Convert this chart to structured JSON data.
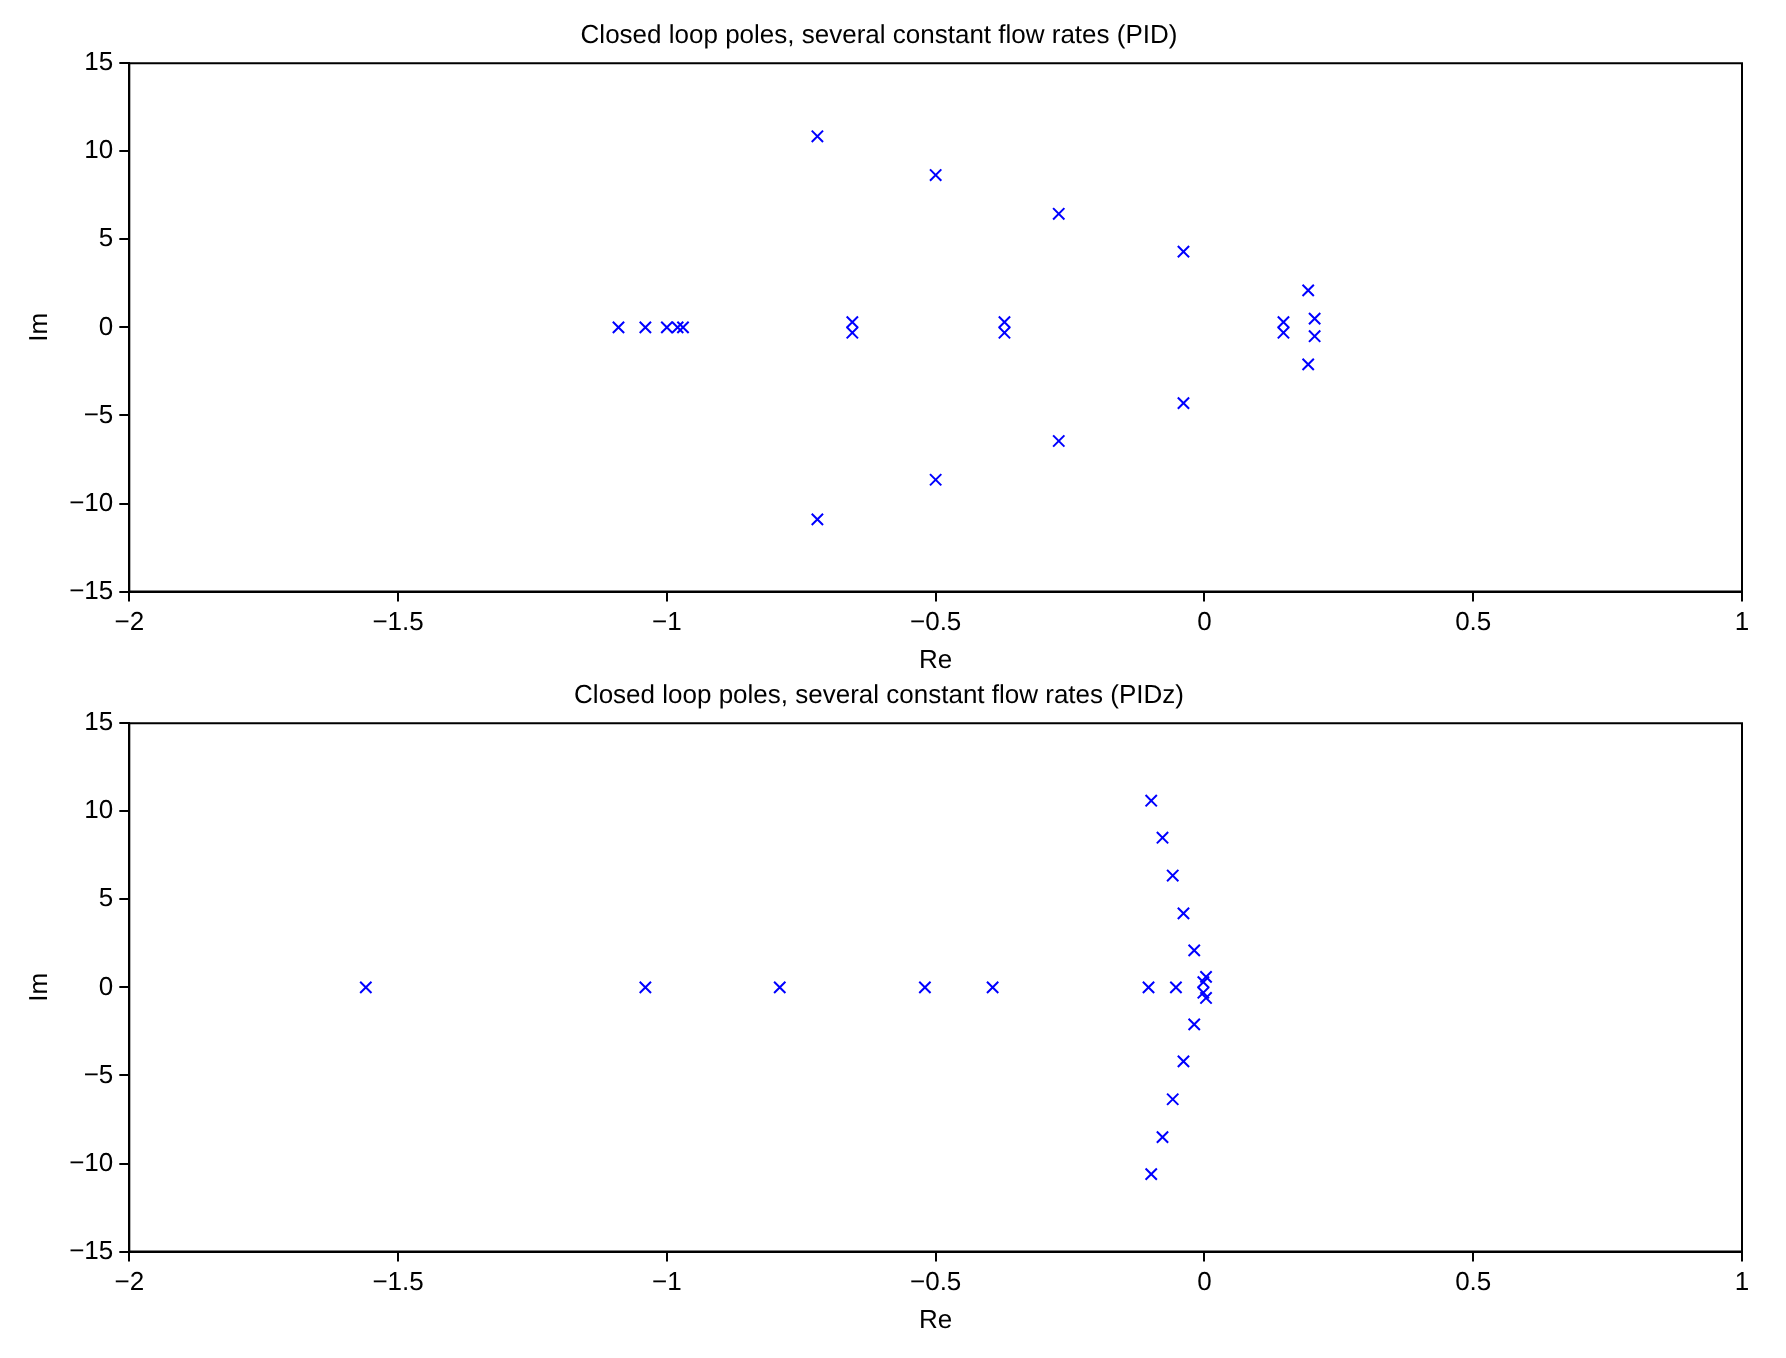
{
  "chart_data": [
    {
      "type": "scatter",
      "title": "Closed loop poles, several constant flow rates (PID)",
      "xlabel": "Re",
      "ylabel": "Im",
      "x": [
        -1.09,
        -1.04,
        -1.0,
        -0.98,
        -0.97,
        -0.72,
        -0.72,
        -0.655,
        -0.655,
        -0.5,
        -0.5,
        -0.372,
        -0.372,
        -0.271,
        -0.271,
        -0.039,
        -0.039,
        0.147,
        0.147,
        0.193,
        0.193,
        0.205,
        0.205
      ],
      "values": [
        0,
        0,
        0,
        0,
        0,
        10.85,
        -10.9,
        0.3,
        -0.3,
        8.65,
        -8.65,
        0.3,
        -0.3,
        6.45,
        -6.45,
        4.3,
        -4.3,
        0.3,
        -0.3,
        2.1,
        -2.1,
        0.5,
        -0.5
      ],
      "color": "#0000ff",
      "marker": "cross",
      "grid": false,
      "xlim": [
        -2,
        1
      ],
      "xticks": [
        -2,
        -1.5,
        -1,
        -0.5,
        0,
        0.5,
        1
      ],
      "ylim": [
        -15,
        15
      ],
      "yticks": [
        -15,
        -10,
        -5,
        0,
        5,
        10,
        15
      ]
    },
    {
      "type": "scatter",
      "title": "Closed loop poles, several constant flow rates (PIDz)",
      "xlabel": "Re",
      "ylabel": "Im",
      "x": [
        -1.56,
        -1.04,
        -0.79,
        -0.52,
        -0.394,
        -0.104,
        -0.053,
        -0.002,
        -0.002,
        0.003,
        0.003,
        -0.099,
        -0.078,
        -0.059,
        -0.039,
        -0.019,
        -0.019,
        -0.039,
        -0.059,
        -0.078,
        -0.099
      ],
      "values": [
        0,
        0,
        0,
        0,
        0,
        0,
        0,
        0.3,
        -0.3,
        0.6,
        -0.6,
        10.6,
        8.5,
        6.35,
        4.2,
        2.1,
        -2.1,
        -4.2,
        -6.35,
        -8.5,
        -10.6
      ],
      "color": "#0000ff",
      "marker": "cross",
      "grid": false,
      "xlim": [
        -2,
        1
      ],
      "xticks": [
        -2,
        -1.5,
        -1,
        -0.5,
        0,
        0.5,
        1
      ],
      "ylim": [
        -15,
        15
      ],
      "yticks": [
        -15,
        -10,
        -5,
        0,
        5,
        10,
        15
      ]
    }
  ]
}
